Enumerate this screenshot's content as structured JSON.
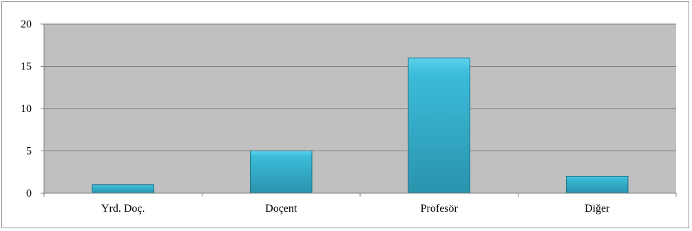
{
  "chart_data": {
    "type": "bar",
    "categories": [
      "Yrd. Doç.",
      "Doçent",
      "Profesör",
      "Diğer"
    ],
    "values": [
      1,
      5,
      16,
      2
    ],
    "title": "",
    "xlabel": "",
    "ylabel": "",
    "ylim": [
      0,
      20
    ],
    "yticks": [
      0,
      5,
      10,
      15,
      20
    ],
    "grid": true,
    "legend": "none",
    "colors": {
      "plot_background": "#c0c0c0",
      "bar_top": "#5fd3ee",
      "bar_mid": "#3bbcd9",
      "bar_bottom": "#2a93ad",
      "bar_edge": "#1f6f84",
      "gridline": "#7a7a7a",
      "axis": "#7a7a7a"
    }
  }
}
